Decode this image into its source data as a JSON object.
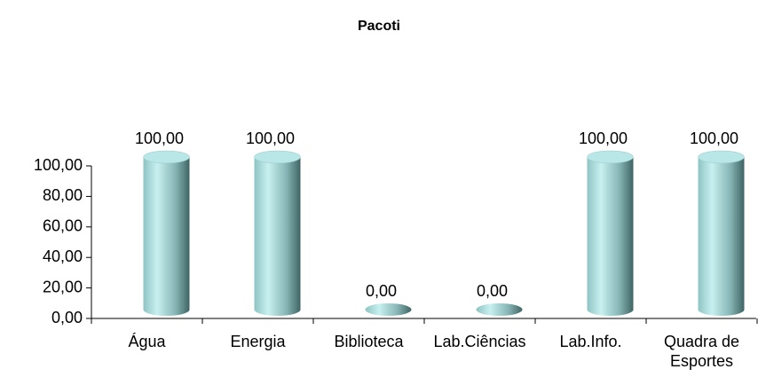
{
  "chart_data": {
    "type": "bar",
    "title": "Pacoti",
    "categories": [
      "Água",
      "Energia",
      "Biblioteca",
      "Lab.Ciências",
      "Lab.Info.",
      "Quadra de Esportes"
    ],
    "values": [
      100,
      100,
      0,
      0,
      100,
      100
    ],
    "value_labels": [
      "100,00",
      "100,00",
      "0,00",
      "0,00",
      "100,00",
      "100,00"
    ],
    "color": "#9fd3d3",
    "ylim": [
      0,
      100
    ],
    "yticks": [
      {
        "value": 0,
        "label": "0,00"
      },
      {
        "value": 20,
        "label": "20,00"
      },
      {
        "value": 40,
        "label": "40,00"
      },
      {
        "value": 60,
        "label": "60,00"
      },
      {
        "value": 80,
        "label": "80,00"
      },
      {
        "value": 100,
        "label": "100,00"
      }
    ]
  }
}
